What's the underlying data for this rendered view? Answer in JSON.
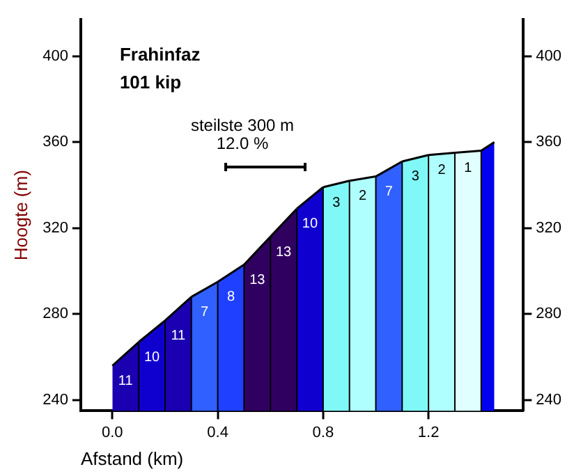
{
  "chart_data": {
    "type": "area",
    "title": "Frahinfaz",
    "subtitle": "101 kip",
    "xlabel": "Afstand (km)",
    "ylabel": "Hoogte (m)",
    "series": [
      {
        "name": "11",
        "color": "#1a00b0",
        "x": [
          0,
          0.1
        ],
        "values": [
          256,
          267
        ]
      },
      {
        "name": "10",
        "color": "#1000d0",
        "x": [
          0.1,
          0.2
        ],
        "values": [
          267,
          277
        ]
      },
      {
        "name": "11",
        "color": "#1a00b0",
        "x": [
          0.2,
          0.3
        ],
        "values": [
          277,
          288
        ]
      },
      {
        "name": "7",
        "color": "#3060ff",
        "x": [
          0.3,
          0.4
        ],
        "values": [
          288,
          295
        ]
      },
      {
        "name": "8",
        "color": "#2040ff",
        "x": [
          0.4,
          0.5
        ],
        "values": [
          295,
          303
        ]
      },
      {
        "name": "13",
        "color": "#300060",
        "x": [
          0.5,
          0.6
        ],
        "values": [
          303,
          316
        ]
      },
      {
        "name": "13",
        "color": "#300060",
        "x": [
          0.6,
          0.7
        ],
        "values": [
          316,
          329
        ]
      },
      {
        "name": "10",
        "color": "#1000d0",
        "x": [
          0.7,
          0.8
        ],
        "values": [
          329,
          339
        ]
      },
      {
        "name": "3",
        "color": "#80f8f8",
        "x": [
          0.8,
          0.9
        ],
        "values": [
          339,
          342
        ]
      },
      {
        "name": "2",
        "color": "#b0ffff",
        "x": [
          0.9,
          1.0
        ],
        "values": [
          342,
          344
        ]
      },
      {
        "name": "7",
        "color": "#3060ff",
        "x": [
          1.0,
          1.1
        ],
        "values": [
          344,
          351
        ]
      },
      {
        "name": "3",
        "color": "#80f8f8",
        "x": [
          1.1,
          1.2
        ],
        "values": [
          351,
          354
        ]
      },
      {
        "name": "2",
        "color": "#b0ffff",
        "x": [
          1.2,
          1.3
        ],
        "values": [
          354,
          355
        ]
      },
      {
        "name": "1",
        "color": "#e0ffff",
        "x": [
          1.3,
          1.4
        ],
        "values": [
          355,
          356
        ]
      },
      {
        "color": "#0000f0",
        "x": [
          1.4,
          1.45
        ],
        "values": [
          356,
          360
        ]
      }
    ],
    "annotations": [
      "steilste 300 m",
      "12.0 %"
    ],
    "xlim": [
      -0.12,
      1.56
    ],
    "xticks": [
      {
        "value": 0,
        "label": "0.0"
      },
      0.4,
      0.8,
      1.2
    ],
    "ylim": [
      235,
      417
    ],
    "yticks": [
      240,
      280,
      320,
      360,
      400
    ],
    "y2lim": [
      235,
      417
    ],
    "y2ticks": [
      240,
      280,
      320,
      360,
      400
    ],
    "grid": false,
    "legend": false,
    "marker": "none"
  }
}
